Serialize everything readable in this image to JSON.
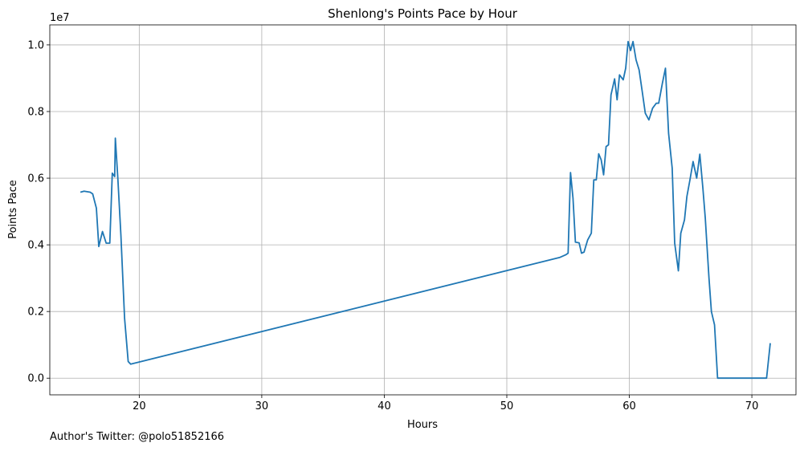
{
  "caption": "Author's Twitter: @polo51852166",
  "chart_data": {
    "type": "line",
    "title": "Shenlong's Points Pace by Hour",
    "xlabel": "Hours",
    "ylabel": "Points Pace",
    "y_offset_label": "1e7",
    "xlim": [
      12.7,
      73.6
    ],
    "ylim": [
      -0.05,
      1.06
    ],
    "x_ticks": [
      20,
      30,
      40,
      50,
      60,
      70
    ],
    "x_tick_labels": [
      "20",
      "30",
      "40",
      "50",
      "60",
      "70"
    ],
    "y_ticks": [
      0.0,
      0.2,
      0.4,
      0.6,
      0.8,
      1.0
    ],
    "y_tick_labels": [
      "0.0",
      "0.2",
      "0.4",
      "0.6",
      "0.8",
      "1.0"
    ],
    "grid": true,
    "line_color": "#1f77b4",
    "series": [
      {
        "x": [
          15.2,
          15.5,
          16.0,
          16.2,
          16.5,
          16.7,
          17.0,
          17.3,
          17.6,
          17.8,
          18.0,
          18.05,
          18.25,
          18.5,
          18.8,
          19.1,
          19.3,
          54.3,
          54.8,
          55.0,
          55.2,
          55.4,
          55.6,
          55.9,
          56.1,
          56.3,
          56.6,
          56.9,
          57.1,
          57.3,
          57.5,
          57.7,
          57.9,
          58.1,
          58.3,
          58.5,
          58.8,
          59.0,
          59.2,
          59.5,
          59.7,
          59.9,
          60.1,
          60.3,
          60.55,
          60.8,
          61.05,
          61.3,
          61.6,
          61.9,
          62.2,
          62.4,
          62.7,
          62.95,
          63.2,
          63.5,
          63.7,
          64.0,
          64.2,
          64.5,
          64.7,
          64.95,
          65.2,
          65.5,
          65.75,
          66.0,
          66.2,
          66.5,
          66.7,
          66.95,
          67.2,
          67.4,
          67.6,
          68.0,
          68.5,
          69.0,
          69.5,
          70.0,
          70.5,
          71.0,
          71.2,
          71.5
        ],
        "y": [
          0.558,
          0.561,
          0.558,
          0.553,
          0.51,
          0.395,
          0.44,
          0.405,
          0.405,
          0.615,
          0.605,
          0.72,
          0.6,
          0.43,
          0.18,
          0.05,
          0.042,
          0.362,
          0.37,
          0.375,
          0.617,
          0.54,
          0.408,
          0.406,
          0.375,
          0.378,
          0.415,
          0.435,
          0.595,
          0.595,
          0.673,
          0.655,
          0.61,
          0.695,
          0.7,
          0.85,
          0.898,
          0.835,
          0.91,
          0.895,
          0.93,
          1.01,
          0.983,
          1.01,
          0.955,
          0.925,
          0.86,
          0.795,
          0.775,
          0.81,
          0.825,
          0.825,
          0.885,
          0.93,
          0.735,
          0.63,
          0.405,
          0.322,
          0.435,
          0.475,
          0.545,
          0.595,
          0.65,
          0.6,
          0.672,
          0.57,
          0.48,
          0.3,
          0.2,
          0.16,
          0.0,
          0.0,
          0.0,
          0.0,
          0.0,
          0.0,
          0.0,
          0.0,
          0.0,
          0.0,
          0.0,
          0.105
        ]
      }
    ]
  }
}
